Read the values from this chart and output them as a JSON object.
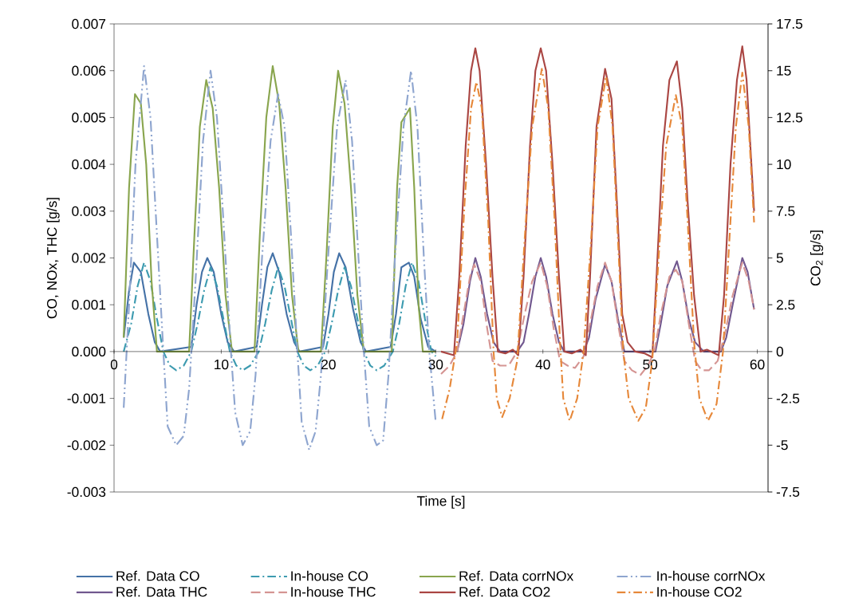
{
  "chart_data": {
    "type": "line",
    "xlabel": "Time [s]",
    "ylabel": "CO, NOx, THC [g/s]",
    "y2label": "CO$_{2}$ [g/s]",
    "xlim": [
      0,
      61
    ],
    "xticks": [
      0,
      10,
      20,
      30,
      40,
      50,
      60
    ],
    "ylim": [
      -0.003,
      0.007
    ],
    "yticks": [
      -0.003,
      -0.002,
      -0.001,
      {
        "value": 0,
        "label": "0.000"
      },
      0.001,
      0.002,
      0.003,
      0.004,
      0.005,
      0.006,
      0.007
    ],
    "y2lim": [
      -7.5,
      17.5
    ],
    "y2ticks": [
      -7.5,
      -5,
      -2.5,
      0,
      2.5,
      5,
      7.5,
      10,
      12.5,
      15,
      17.5
    ],
    "grid": false,
    "legend": "bottom",
    "series": [
      {
        "name": "Ref. Data CO",
        "color": "#4572a7",
        "line_style": "solid",
        "x": [
          0.9,
          1.4,
          1.85,
          2.5,
          3.2,
          3.8,
          4.3,
          7.2,
          7.7,
          8.2,
          8.7,
          9.3,
          10.0,
          10.6,
          11.2,
          13.3,
          13.8,
          14.3,
          14.8,
          15.4,
          16.1,
          16.8,
          17.3,
          19.5,
          20.0,
          20.5,
          21.0,
          21.6,
          22.3,
          23.0,
          23.5,
          25.8,
          26.3,
          26.8,
          27.5,
          28.0,
          28.6,
          29.3,
          30.0
        ],
        "values": [
          0.0003,
          0.0013,
          0.0019,
          0.0017,
          0.0008,
          0.0002,
          0.0,
          0.0001,
          0.001,
          0.0017,
          0.002,
          0.0017,
          0.0008,
          0.0002,
          0.0,
          0.0001,
          0.001,
          0.0018,
          0.0021,
          0.0017,
          0.0008,
          0.0002,
          0.0,
          0.0001,
          0.0008,
          0.0017,
          0.0021,
          0.0018,
          0.0009,
          0.0002,
          0.0,
          0.0001,
          0.0008,
          0.0018,
          0.0019,
          0.0016,
          0.0007,
          0.0001,
          0.0
        ]
      },
      {
        "name": "In-house CO",
        "color": "#3d9bb0",
        "line_style": "dashdot",
        "x": [
          0.9,
          1.6,
          2.2,
          2.8,
          3.4,
          4.0,
          4.6,
          5.2,
          5.8,
          6.5,
          7.2,
          7.8,
          8.4,
          9.0,
          9.6,
          10.2,
          10.8,
          11.4,
          12.0,
          12.7,
          13.5,
          14.1,
          14.7,
          15.3,
          15.9,
          16.5,
          17.1,
          17.7,
          18.3,
          19.0,
          19.7,
          20.3,
          20.9,
          21.5,
          22.1,
          22.7,
          23.3,
          23.9,
          24.5,
          25.2,
          26.0,
          26.6,
          27.2,
          27.8,
          28.4,
          29.0,
          29.6,
          30.0
        ],
        "values": [
          0.0,
          0.0006,
          0.0014,
          0.0019,
          0.0015,
          0.0007,
          0.0,
          -0.0003,
          -0.0004,
          -0.0003,
          0.0,
          0.0006,
          0.0013,
          0.0018,
          0.0014,
          0.0007,
          0.0,
          -0.0003,
          -0.0004,
          -0.0003,
          0.0,
          0.0006,
          0.0013,
          0.0018,
          0.0014,
          0.0007,
          0.0,
          -0.0003,
          -0.0004,
          -0.0003,
          0.0,
          0.0006,
          0.0013,
          0.0018,
          0.0014,
          0.0007,
          0.0,
          -0.0003,
          -0.0004,
          -0.0003,
          0.0,
          0.0006,
          0.0014,
          0.0019,
          0.0015,
          0.0007,
          0.0,
          -0.0001
        ]
      },
      {
        "name": "Ref. Data corrNOx",
        "color": "#89a54e",
        "line_style": "solid",
        "x": [
          0.9,
          1.4,
          1.95,
          2.5,
          3.0,
          3.5,
          4.0,
          7.0,
          7.5,
          8.0,
          8.6,
          9.2,
          9.8,
          10.4,
          11.0,
          13.1,
          13.6,
          14.2,
          14.8,
          15.4,
          16.0,
          16.6,
          17.2,
          19.3,
          19.8,
          20.4,
          20.9,
          21.5,
          22.1,
          22.7,
          23.3,
          25.9,
          26.4,
          26.8,
          27.6,
          28.0,
          28.4,
          28.8,
          30.0
        ],
        "values": [
          0.0003,
          0.0035,
          0.0055,
          0.0053,
          0.004,
          0.0015,
          0.0,
          0.0,
          0.0025,
          0.0048,
          0.0058,
          0.0052,
          0.0035,
          0.0012,
          0.0,
          0.0,
          0.0025,
          0.005,
          0.0061,
          0.0053,
          0.0035,
          0.0012,
          0.0,
          0.0,
          0.002,
          0.0048,
          0.006,
          0.0053,
          0.0035,
          0.0012,
          0.0,
          0.0,
          0.0035,
          0.0049,
          0.0052,
          0.0035,
          0.001,
          0.0,
          0.0
        ]
      },
      {
        "name": "In-house corrNOx",
        "color": "#8ea5cf",
        "line_style": "dashdotdot",
        "x": [
          0.9,
          1.4,
          2.0,
          2.8,
          3.4,
          4.0,
          4.6,
          5.0,
          5.8,
          6.5,
          7.0,
          7.6,
          8.3,
          9.0,
          9.6,
          10.2,
          10.9,
          11.3,
          12.0,
          12.7,
          13.2,
          13.8,
          14.6,
          15.3,
          15.9,
          16.5,
          17.1,
          17.5,
          18.2,
          18.8,
          19.3,
          19.9,
          20.8,
          21.6,
          22.2,
          22.8,
          23.3,
          23.8,
          24.5,
          25.1,
          25.6,
          26.2,
          27.0,
          27.7,
          28.3,
          28.9,
          29.4,
          30.0
        ],
        "values": [
          -0.0012,
          0.001,
          0.004,
          0.0061,
          0.005,
          0.0025,
          0.0,
          -0.0016,
          -0.002,
          -0.0018,
          -0.0008,
          0.0015,
          0.0045,
          0.006,
          0.005,
          0.0028,
          0.0,
          -0.0013,
          -0.002,
          -0.0017,
          -0.0005,
          0.002,
          0.0045,
          0.0055,
          0.0048,
          0.0025,
          0.0,
          -0.0015,
          -0.0021,
          -0.0017,
          -0.0005,
          0.0018,
          0.0048,
          0.0058,
          0.0045,
          0.002,
          0.0,
          -0.0016,
          -0.002,
          -0.0019,
          -0.0005,
          0.002,
          0.0048,
          0.006,
          0.0048,
          0.002,
          0.0,
          -0.0015
        ]
      },
      {
        "name": "Ref. Data THC",
        "color": "#71588f",
        "line_style": "solid",
        "x": [
          32.0,
          32.6,
          33.2,
          33.7,
          34.2,
          34.8,
          35.4,
          36.0,
          37.6,
          38.2,
          38.7,
          39.3,
          39.8,
          40.3,
          40.9,
          41.5,
          42.0,
          43.8,
          44.3,
          44.9,
          45.8,
          46.4,
          47.0,
          47.6,
          49.5,
          50.5,
          51.0,
          51.6,
          52.5,
          53.0,
          53.6,
          54.2,
          55.0,
          56.6,
          57.1,
          57.7,
          58.6,
          59.1,
          59.7
        ],
        "values": [
          0.0,
          0.0006,
          0.0015,
          0.002,
          0.0016,
          0.0008,
          0.0002,
          0.0,
          0.0,
          0.0002,
          0.0008,
          0.0016,
          0.002,
          0.0016,
          0.0008,
          0.0002,
          0.0,
          0.0,
          0.0003,
          0.0011,
          0.00186,
          0.0015,
          0.0007,
          0.0,
          0.0,
          0.0,
          0.0006,
          0.0014,
          0.00193,
          0.0015,
          0.0007,
          0.0002,
          0.0,
          0.0,
          0.0003,
          0.001,
          0.002,
          0.0017,
          0.0009
        ]
      },
      {
        "name": "In-house THC",
        "color": "#d59593",
        "line_style": "dashed",
        "x": [
          30.5,
          31.3,
          32.0,
          32.6,
          33.2,
          33.6,
          34.2,
          34.8,
          35.3,
          36.0,
          36.8,
          37.6,
          38.3,
          39.0,
          39.8,
          40.4,
          41.0,
          41.6,
          42.3,
          43.0,
          43.8,
          44.4,
          45.1,
          45.8,
          46.4,
          47.0,
          47.6,
          48.3,
          49.1,
          49.8,
          50.4,
          51.0,
          51.8,
          52.4,
          53.0,
          53.6,
          54.2,
          54.8,
          55.5,
          56.3,
          57.0,
          57.7,
          58.6,
          59.2,
          59.7
        ],
        "values": [
          -0.00048,
          -0.0003,
          0.0,
          0.0008,
          0.0016,
          0.00186,
          0.0015,
          0.0005,
          -0.0002,
          -0.0003,
          -0.0003,
          0.0,
          0.0008,
          0.0015,
          0.0019,
          0.0014,
          0.0005,
          -0.0002,
          -0.0003,
          -0.00035,
          -0.0001,
          0.0006,
          0.0014,
          0.0019,
          0.0015,
          0.0006,
          -0.0002,
          -0.0004,
          -0.0005,
          -0.0003,
          0.0,
          0.0008,
          0.0016,
          0.00175,
          0.0015,
          0.0006,
          -0.0002,
          -0.0004,
          -0.0004,
          -0.0002,
          0.0004,
          0.0012,
          0.0019,
          0.0015,
          0.0009
        ]
      },
      {
        "name": "Ref. Data CO2",
        "color": "#aa4643",
        "line_style": "solid",
        "axis": "y2",
        "x": [
          30.5,
          31.7,
          32.2,
          32.8,
          33.3,
          33.7,
          34.1,
          34.7,
          35.3,
          35.8,
          36.5,
          37.2,
          37.7,
          38.2,
          38.8,
          39.3,
          39.8,
          40.3,
          40.9,
          41.5,
          42.0,
          42.7,
          43.5,
          44.0,
          44.4,
          45.0,
          45.8,
          46.4,
          46.9,
          47.4,
          47.9,
          48.6,
          49.5,
          50.2,
          50.6,
          51.2,
          51.8,
          52.5,
          53.0,
          53.5,
          54.1,
          54.7,
          55.3,
          56.4,
          56.9,
          57.5,
          58.1,
          58.6,
          59.0,
          59.7
        ],
        "values": [
          0.0,
          -0.2,
          4,
          11,
          15,
          16.2,
          15,
          10,
          4,
          0.0,
          -0.1,
          0.1,
          -0.2,
          4,
          11,
          15,
          16.2,
          15,
          10,
          4,
          0.0,
          -0.1,
          0.1,
          -0.2,
          4,
          12,
          15.1,
          13.5,
          8,
          2,
          0.5,
          0.0,
          -0.1,
          -0.3,
          4,
          11,
          14.5,
          15.5,
          13,
          8,
          3,
          0.0,
          0.1,
          -0.2,
          3,
          10,
          14.5,
          16.3,
          14.5,
          7.5
        ]
      },
      {
        "name": "In-house CO2",
        "color": "#e6883a",
        "line_style": "dashdot",
        "axis": "y2",
        "x": [
          30.6,
          31.3,
          32.0,
          32.7,
          33.3,
          33.8,
          34.3,
          34.9,
          35.4,
          35.7,
          36.2,
          36.9,
          37.6,
          38.3,
          39.0,
          39.9,
          40.5,
          41.1,
          41.6,
          41.9,
          42.5,
          43.2,
          43.8,
          44.5,
          45.1,
          45.9,
          46.5,
          47.0,
          47.5,
          48.0,
          48.9,
          49.6,
          50.2,
          50.9,
          51.5,
          52.4,
          53.0,
          53.5,
          54.1,
          54.6,
          55.4,
          56.2,
          56.8,
          57.5,
          58.0,
          58.6,
          59.2,
          59.7
        ],
        "values": [
          -3.6,
          -2.0,
          0.5,
          8,
          13,
          14.4,
          13,
          7,
          0.0,
          -2.5,
          -3.5,
          -2.5,
          -0.5,
          6,
          12,
          15.1,
          13,
          7,
          0.5,
          -2.5,
          -3.7,
          -2.5,
          0.0,
          6,
          12,
          14.7,
          12,
          6,
          0.0,
          -2.5,
          -3.7,
          -3.0,
          -0.5,
          6,
          11,
          13.7,
          12,
          7,
          0.5,
          -2.5,
          -3.7,
          -2.8,
          0.0,
          7,
          12,
          14.9,
          12,
          6.9
        ]
      }
    ]
  }
}
